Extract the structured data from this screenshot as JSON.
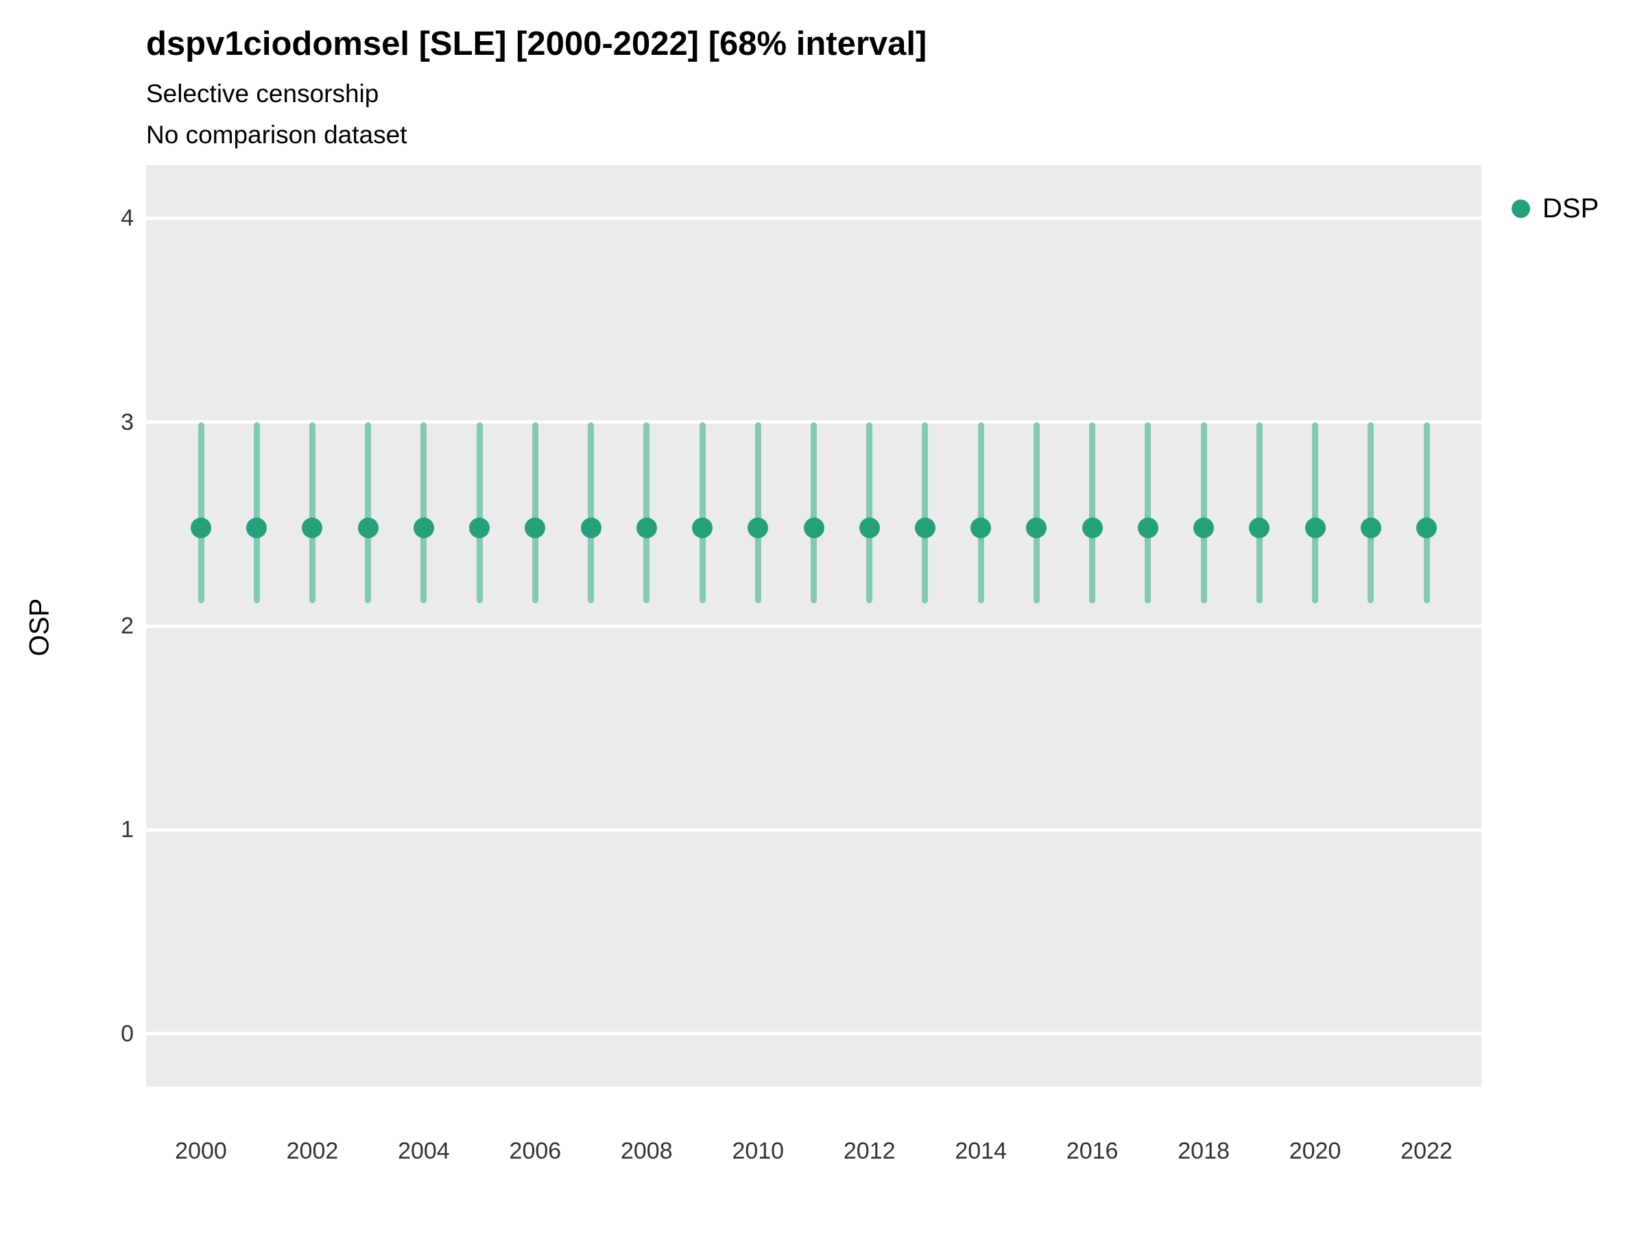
{
  "chart_data": {
    "type": "scatter",
    "mark": "pointrange",
    "title": "dspv1ciodomsel [SLE] [2000-2022] [68% interval]",
    "subtitle1": "Selective censorship",
    "subtitle2": "No comparison dataset",
    "xlabel": "",
    "ylabel": "OSP",
    "ylim": [
      -0.26,
      4.26
    ],
    "yticks": [
      0,
      1,
      2,
      3,
      4
    ],
    "x_range": [
      2000,
      2022
    ],
    "xticks": [
      2000,
      2002,
      2004,
      2006,
      2008,
      2010,
      2012,
      2014,
      2016,
      2018,
      2020,
      2022
    ],
    "grid": "major-horizontal",
    "legend": {
      "position": "right",
      "entries": [
        {
          "label": "DSP",
          "color": "#24a17c"
        }
      ]
    },
    "series": [
      {
        "name": "DSP",
        "interval": "68%",
        "x": [
          2000,
          2001,
          2002,
          2003,
          2004,
          2005,
          2006,
          2007,
          2008,
          2009,
          2010,
          2011,
          2012,
          2013,
          2014,
          2015,
          2016,
          2017,
          2018,
          2019,
          2020,
          2021,
          2022
        ],
        "y": [
          2.48,
          2.48,
          2.48,
          2.48,
          2.48,
          2.48,
          2.48,
          2.48,
          2.48,
          2.48,
          2.48,
          2.48,
          2.48,
          2.48,
          2.48,
          2.48,
          2.48,
          2.48,
          2.48,
          2.48,
          2.48,
          2.48,
          2.48
        ],
        "lower": [
          2.11,
          2.11,
          2.11,
          2.11,
          2.11,
          2.11,
          2.11,
          2.11,
          2.11,
          2.11,
          2.11,
          2.11,
          2.11,
          2.11,
          2.11,
          2.11,
          2.11,
          2.11,
          2.11,
          2.11,
          2.11,
          2.11,
          2.11
        ],
        "upper": [
          3.0,
          3.0,
          3.0,
          3.0,
          3.0,
          3.0,
          3.0,
          3.0,
          3.0,
          3.0,
          3.0,
          3.0,
          3.0,
          3.0,
          3.0,
          3.0,
          3.0,
          3.0,
          3.0,
          3.0,
          3.0,
          3.0,
          3.0
        ]
      }
    ],
    "colors": {
      "point": "#24a17c",
      "interval": "#82cbb0",
      "panel_bg": "#ebebeb",
      "grid": "#ffffff"
    }
  }
}
